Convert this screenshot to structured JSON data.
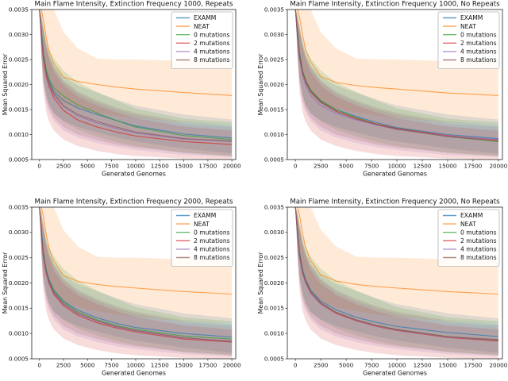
{
  "figure": {
    "background": "#ffffff",
    "text_color": "#141414",
    "spine_color": "#3a3a3a",
    "line_opacity": 0.7,
    "band_opacity": 0.16,
    "legend_border_color": "#b5b5b5",
    "legend_bg_color": "#ffffff"
  },
  "legend": {
    "position": "upper right",
    "entries": [
      "EXAMM",
      "NEAT",
      "0 mutations",
      "2 mutations",
      "4 mutations",
      "8 mutations"
    ]
  },
  "series_colors": {
    "EXAMM": "#1f77b4",
    "NEAT": "#ff7f0e",
    "0 mutations": "#2ca02c",
    "2 mutations": "#d62728",
    "4 mutations": "#9467bd",
    "8 mutations": "#8c564b"
  },
  "bands": {
    "EXAMM": {
      "hi": [
        0.0035,
        0.0033,
        0.0031,
        0.0028,
        0.0026,
        0.00238,
        0.00215,
        0.00198,
        0.00184,
        0.0017,
        0.00158,
        0.0014,
        0.0013
      ],
      "lo": [
        0.0035,
        0.0027,
        0.00215,
        0.0018,
        0.0016,
        0.00142,
        0.00128,
        0.00115,
        0.00104,
        0.00094,
        0.00086,
        0.00072,
        0.00062
      ]
    },
    "NEAT": {
      "hi": [
        0.0035,
        0.0035,
        0.0035,
        0.0035,
        0.0035,
        0.0035,
        0.00305,
        0.00272,
        0.00252,
        0.0025,
        0.0025,
        0.00247,
        0.00245
      ],
      "lo": [
        0.0035,
        0.0028,
        0.0024,
        0.00212,
        0.00196,
        0.0018,
        0.00162,
        0.00152,
        0.00144,
        0.00138,
        0.00133,
        0.00124,
        0.0012
      ]
    },
    "0 mutations": {
      "hi": [
        0.0035,
        0.0034,
        0.0032,
        0.0029,
        0.00272,
        0.00252,
        0.00228,
        0.00205,
        0.00185,
        0.00168,
        0.00152,
        0.00132,
        0.00124
      ],
      "lo": [
        0.0035,
        0.0026,
        0.0021,
        0.00178,
        0.0016,
        0.00143,
        0.00126,
        0.0011,
        0.00096,
        0.00085,
        0.00077,
        0.00063,
        0.00056
      ]
    },
    "2 mutations": {
      "hi": [
        0.0035,
        0.0033,
        0.00305,
        0.00272,
        0.0025,
        0.00225,
        0.00198,
        0.00176,
        0.00158,
        0.00144,
        0.00133,
        0.00116,
        0.00108
      ],
      "lo": [
        0.0035,
        0.0025,
        0.00185,
        0.00145,
        0.00126,
        0.00108,
        0.0009,
        0.00077,
        0.00067,
        0.00061,
        0.00057,
        0.00052,
        0.0005
      ]
    },
    "4 mutations": {
      "hi": [
        0.0035,
        0.0033,
        0.0031,
        0.00278,
        0.00256,
        0.00232,
        0.00205,
        0.00182,
        0.00164,
        0.0015,
        0.00139,
        0.00122,
        0.00115
      ],
      "lo": [
        0.0035,
        0.0026,
        0.002,
        0.00164,
        0.00145,
        0.00127,
        0.00108,
        0.00094,
        0.00083,
        0.00075,
        0.00069,
        0.00059,
        0.00055
      ]
    },
    "8 mutations": {
      "hi": [
        0.0035,
        0.0034,
        0.00315,
        0.00282,
        0.0026,
        0.00236,
        0.00208,
        0.00186,
        0.00168,
        0.00154,
        0.00143,
        0.00126,
        0.00119
      ],
      "lo": [
        0.0035,
        0.0026,
        0.00205,
        0.0017,
        0.00152,
        0.00134,
        0.00115,
        0.001,
        0.00089,
        0.0008,
        0.00074,
        0.00064,
        0.00058
      ]
    }
  },
  "chart_data": [
    {
      "type": "line",
      "title": "Main Flame Intensity, Extinction Frequency 1000, Repeats",
      "xlabel": "Generated Genomes",
      "ylabel": "Mean Squared Error",
      "xlim": [
        -800,
        20400
      ],
      "ylim": [
        0.0005,
        0.0035
      ],
      "xticks": [
        0,
        2500,
        5000,
        7500,
        10000,
        12500,
        15000,
        17500,
        20000
      ],
      "yticks": [
        0.0005,
        0.001,
        0.0015,
        0.002,
        0.0025,
        0.003,
        0.0035
      ],
      "grid": false,
      "x": [
        0,
        200,
        400,
        700,
        1000,
        1500,
        2500,
        4000,
        6000,
        8000,
        10000,
        15000,
        20000
      ],
      "series": [
        {
          "name": "EXAMM",
          "values": [
            0.0035,
            0.0031,
            0.00265,
            0.00228,
            0.00207,
            0.00186,
            0.00168,
            0.00153,
            0.0014,
            0.00128,
            0.00117,
            0.00101,
            0.00093
          ]
        },
        {
          "name": "NEAT",
          "values": [
            0.0035,
            0.0035,
            0.0033,
            0.00295,
            0.00266,
            0.00242,
            0.00215,
            0.00206,
            0.002,
            0.00195,
            0.00191,
            0.00184,
            0.00178
          ]
        },
        {
          "name": "0 mutations",
          "values": [
            0.0035,
            0.00305,
            0.00262,
            0.0023,
            0.00211,
            0.00193,
            0.00177,
            0.00159,
            0.00143,
            0.00128,
            0.00115,
            0.00098,
            0.0009
          ]
        },
        {
          "name": "2 mutations",
          "values": [
            0.0035,
            0.00295,
            0.00252,
            0.00216,
            0.00196,
            0.00173,
            0.00148,
            0.00129,
            0.00115,
            0.00105,
            0.00097,
            0.00086,
            0.0008
          ]
        },
        {
          "name": "4 mutations",
          "values": [
            0.0035,
            0.003,
            0.00257,
            0.00221,
            0.002,
            0.00179,
            0.00156,
            0.00137,
            0.00123,
            0.00112,
            0.00103,
            0.00091,
            0.00086
          ]
        },
        {
          "name": "8 mutations",
          "values": [
            0.0035,
            0.00302,
            0.00259,
            0.00224,
            0.00203,
            0.00182,
            0.00158,
            0.0014,
            0.00126,
            0.00115,
            0.00105,
            0.00092,
            0.00087
          ]
        }
      ]
    },
    {
      "type": "line",
      "title": "Main Flame Intensity, Extinction Frequency 1000, No Repeats",
      "xlabel": "Generated Genomes",
      "ylabel": "Mean Squared Error",
      "xlim": [
        -800,
        20400
      ],
      "ylim": [
        0.0005,
        0.0035
      ],
      "xticks": [
        0,
        2500,
        5000,
        7500,
        10000,
        12500,
        15000,
        17500,
        20000
      ],
      "yticks": [
        0.0005,
        0.001,
        0.0015,
        0.002,
        0.0025,
        0.003,
        0.0035
      ],
      "grid": false,
      "x": [
        0,
        200,
        400,
        700,
        1000,
        1500,
        2500,
        4000,
        6000,
        8000,
        10000,
        15000,
        20000
      ],
      "series": [
        {
          "name": "EXAMM",
          "values": [
            0.0035,
            0.00308,
            0.00264,
            0.00228,
            0.00208,
            0.00188,
            0.00167,
            0.0015,
            0.00136,
            0.00124,
            0.00114,
            0.001,
            0.00092
          ]
        },
        {
          "name": "NEAT",
          "values": [
            0.0035,
            0.0035,
            0.00335,
            0.003,
            0.0027,
            0.00245,
            0.00216,
            0.00204,
            0.00198,
            0.00194,
            0.00191,
            0.00183,
            0.00178
          ]
        },
        {
          "name": "0 mutations",
          "values": [
            0.0035,
            0.003,
            0.00258,
            0.00227,
            0.00209,
            0.00189,
            0.00168,
            0.0015,
            0.00134,
            0.00121,
            0.00112,
            0.00096,
            0.00086
          ]
        },
        {
          "name": "2 mutations",
          "values": [
            0.0035,
            0.00298,
            0.00256,
            0.00224,
            0.00206,
            0.00186,
            0.00165,
            0.00147,
            0.00132,
            0.00121,
            0.00112,
            0.00098,
            0.00089
          ]
        },
        {
          "name": "4 mutations",
          "values": [
            0.0035,
            0.00296,
            0.00252,
            0.00219,
            0.00199,
            0.00178,
            0.00158,
            0.00142,
            0.00129,
            0.00119,
            0.0011,
            0.00097,
            0.0009
          ]
        },
        {
          "name": "8 mutations",
          "values": [
            0.0035,
            0.00299,
            0.00257,
            0.00225,
            0.00206,
            0.00185,
            0.00164,
            0.00146,
            0.00131,
            0.0012,
            0.00111,
            0.00096,
            0.00087
          ]
        }
      ]
    },
    {
      "type": "line",
      "title": "Main Flame Intensity, Extinction Frequency 2000, Repeats",
      "xlabel": "Generated Genomes",
      "ylabel": "Mean Squared Error",
      "xlim": [
        -800,
        20400
      ],
      "ylim": [
        0.0005,
        0.0035
      ],
      "xticks": [
        0,
        2500,
        5000,
        7500,
        10000,
        12500,
        15000,
        17500,
        20000
      ],
      "yticks": [
        0.0005,
        0.001,
        0.0015,
        0.002,
        0.0025,
        0.003,
        0.0035
      ],
      "grid": false,
      "x": [
        0,
        200,
        400,
        700,
        1000,
        1500,
        2500,
        4000,
        6000,
        8000,
        10000,
        15000,
        20000
      ],
      "series": [
        {
          "name": "EXAMM",
          "values": [
            0.0035,
            0.00308,
            0.00263,
            0.00227,
            0.00207,
            0.00186,
            0.00164,
            0.00146,
            0.00131,
            0.0012,
            0.00112,
            0.001,
            0.00093
          ]
        },
        {
          "name": "NEAT",
          "values": [
            0.0035,
            0.0035,
            0.00332,
            0.00297,
            0.00268,
            0.00243,
            0.00215,
            0.00203,
            0.00197,
            0.00193,
            0.0019,
            0.00183,
            0.00178
          ]
        },
        {
          "name": "0 mutations",
          "values": [
            0.0035,
            0.003,
            0.00257,
            0.00224,
            0.00205,
            0.00184,
            0.00162,
            0.00143,
            0.00127,
            0.00116,
            0.00108,
            0.00095,
            0.00089
          ]
        },
        {
          "name": "2 mutations",
          "values": [
            0.0035,
            0.00297,
            0.00253,
            0.00219,
            0.00199,
            0.00177,
            0.00155,
            0.00136,
            0.00121,
            0.00111,
            0.00103,
            0.00089,
            0.00083
          ]
        },
        {
          "name": "4 mutations",
          "values": [
            0.0035,
            0.00299,
            0.00255,
            0.00221,
            0.00201,
            0.0018,
            0.00158,
            0.00139,
            0.00124,
            0.00113,
            0.00105,
            0.00091,
            0.00085
          ]
        },
        {
          "name": "8 mutations",
          "values": [
            0.0035,
            0.00301,
            0.00257,
            0.00223,
            0.00203,
            0.00181,
            0.00159,
            0.0014,
            0.00125,
            0.00114,
            0.00106,
            0.00092,
            0.00084
          ]
        }
      ]
    },
    {
      "type": "line",
      "title": "Main Flame Intensity, Extinction Frequency 2000, No Repeats",
      "xlabel": "Generated Genomes",
      "ylabel": "Mean Squared Error",
      "xlim": [
        -800,
        20400
      ],
      "ylim": [
        0.0005,
        0.0035
      ],
      "xticks": [
        0,
        2500,
        5000,
        7500,
        10000,
        12500,
        15000,
        17500,
        20000
      ],
      "yticks": [
        0.0005,
        0.001,
        0.0015,
        0.002,
        0.0025,
        0.003,
        0.0035
      ],
      "grid": false,
      "x": [
        0,
        200,
        400,
        700,
        1000,
        1500,
        2500,
        4000,
        6000,
        8000,
        10000,
        15000,
        20000
      ],
      "series": [
        {
          "name": "EXAMM",
          "values": [
            0.0035,
            0.00306,
            0.00262,
            0.00227,
            0.00207,
            0.00186,
            0.00164,
            0.00147,
            0.00132,
            0.00122,
            0.00114,
            0.00102,
            0.00094
          ]
        },
        {
          "name": "NEAT",
          "values": [
            0.0035,
            0.0035,
            0.00334,
            0.00299,
            0.0027,
            0.00244,
            0.00216,
            0.00204,
            0.00197,
            0.00193,
            0.0019,
            0.00183,
            0.00178
          ]
        },
        {
          "name": "0 mutations",
          "values": [
            0.0035,
            0.00299,
            0.00256,
            0.00222,
            0.00203,
            0.00182,
            0.0016,
            0.00142,
            0.00127,
            0.00116,
            0.00108,
            0.00094,
            0.00086
          ]
        },
        {
          "name": "2 mutations",
          "values": [
            0.0035,
            0.00297,
            0.00254,
            0.0022,
            0.00201,
            0.0018,
            0.00158,
            0.0014,
            0.00125,
            0.00114,
            0.00106,
            0.00092,
            0.00085
          ]
        },
        {
          "name": "4 mutations",
          "values": [
            0.0035,
            0.00298,
            0.00255,
            0.00221,
            0.00202,
            0.00181,
            0.00159,
            0.00141,
            0.00126,
            0.00115,
            0.00107,
            0.00093,
            0.00087
          ]
        },
        {
          "name": "8 mutations",
          "values": [
            0.0035,
            0.003,
            0.00257,
            0.00223,
            0.00204,
            0.00183,
            0.00161,
            0.00142,
            0.00127,
            0.00116,
            0.00108,
            0.00094,
            0.00088
          ]
        }
      ]
    }
  ]
}
